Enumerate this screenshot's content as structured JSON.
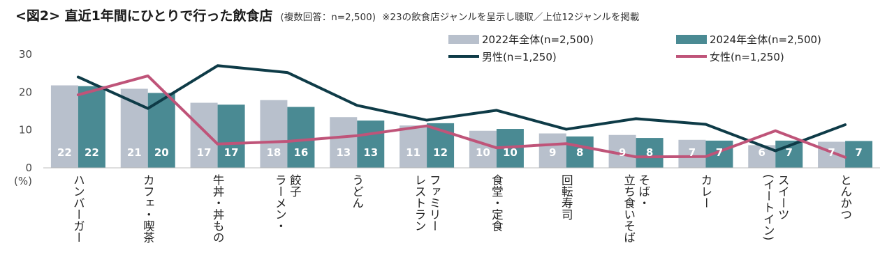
{
  "title": {
    "main": "<図2> 直近1年間にひとりで行った飲食店",
    "sub": "(複数回答：n=2,500)",
    "note": "※23の飲食店ジャンルを呈示し聴取／上位12ジャンルを掲載"
  },
  "chart_data": {
    "type": "bar",
    "yunit": "(%)",
    "ylim": [
      0,
      30
    ],
    "yticks": [
      0,
      10,
      20,
      30
    ],
    "grid": false,
    "legend_position": "top-right",
    "categories": [
      "ハンバーガー",
      "カフェ・喫茶",
      "牛丼・丼もの",
      "餃子ラーメン・",
      "うどん",
      "ファミリーレストラン",
      "食堂・定食",
      "回転寿司",
      "そば・立ち食いそば",
      "カレー",
      "スイーツ(イートイン)",
      "とんかつ"
    ],
    "category_lines": [
      [
        "ハンバーガー"
      ],
      [
        "カフェ・喫茶"
      ],
      [
        "牛丼・丼もの"
      ],
      [
        "餃子",
        "ラーメン・"
      ],
      [
        "うどん"
      ],
      [
        "ファミリー",
        "レストラン"
      ],
      [
        "食堂・定食"
      ],
      [
        "回転寿司"
      ],
      [
        "そば・",
        "立ち食いそば"
      ],
      [
        "カレー"
      ],
      [
        "スイーツ",
        "(イートイン)"
      ],
      [
        "とんかつ"
      ]
    ],
    "series": [
      {
        "name": "2022年全体(n=2,500)",
        "kind": "bar",
        "color": "#b8c0cc",
        "values": [
          21.8,
          20.9,
          17.2,
          17.9,
          13.4,
          11.2,
          9.8,
          9.1,
          8.7,
          7.4,
          6.0,
          6.9
        ],
        "labels": [
          "22",
          "21",
          "17",
          "18",
          "13",
          "11",
          "10",
          "9",
          "9",
          "7",
          "6",
          "7"
        ]
      },
      {
        "name": "2024年全体(n=2,500)",
        "kind": "bar",
        "color": "#4a8a93",
        "values": [
          21.6,
          19.8,
          16.7,
          16.1,
          12.5,
          11.8,
          10.3,
          8.3,
          7.9,
          7.2,
          7.2,
          7.1
        ],
        "labels": [
          "22",
          "20",
          "17",
          "16",
          "13",
          "12",
          "10",
          "8",
          "8",
          "7",
          "7",
          "7"
        ]
      },
      {
        "name": "男性(n=1,250)",
        "kind": "line",
        "color": "#0e3b47",
        "values": [
          24.0,
          15.7,
          27.0,
          25.2,
          16.5,
          12.6,
          15.2,
          10.2,
          13.0,
          11.5,
          4.5,
          11.4
        ]
      },
      {
        "name": "女性(n=1,250)",
        "kind": "line",
        "color": "#bf5479",
        "values": [
          19.3,
          24.3,
          6.3,
          7.0,
          8.5,
          11.1,
          5.3,
          6.4,
          2.9,
          3.0,
          9.8,
          2.8
        ]
      }
    ]
  }
}
